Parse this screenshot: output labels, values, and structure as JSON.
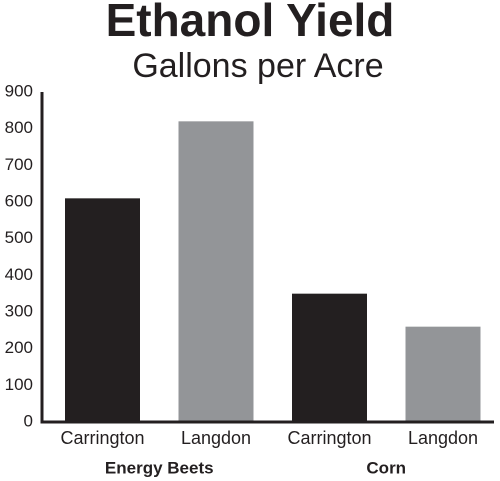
{
  "chart_data": {
    "type": "bar",
    "title": "Ethanol Yield",
    "subtitle": "Gallons per Acre",
    "categories": [
      "Carrington",
      "Langdon",
      "Carrington",
      "Langdon"
    ],
    "groups": [
      "Energy Beets",
      "Corn"
    ],
    "values": [
      610,
      820,
      350,
      260
    ],
    "colors": [
      "#231f20",
      "#939598",
      "#231f20",
      "#939598"
    ],
    "ylim": [
      0,
      900
    ],
    "yticks": [
      0,
      100,
      200,
      300,
      400,
      500,
      600,
      700,
      800,
      900
    ],
    "grid": false
  }
}
